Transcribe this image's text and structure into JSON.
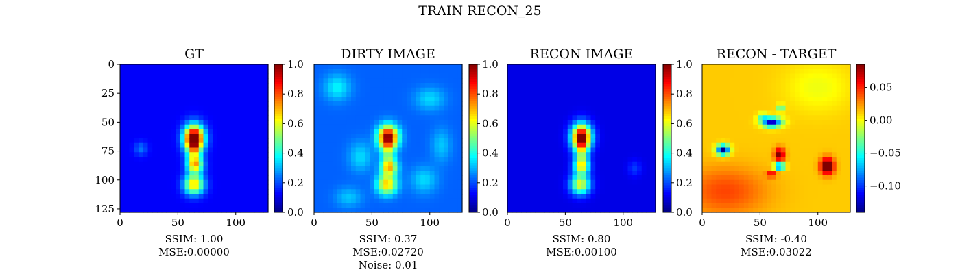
{
  "figure": {
    "title": "TRAIN RECON_25"
  },
  "chart_data": [
    {
      "type": "heatmap",
      "title": "GT",
      "xlabel_lines": [
        "SSIM: 1.00",
        "MSE:0.00000"
      ],
      "xticks": [
        0,
        50,
        100
      ],
      "yticks": [
        0,
        25,
        50,
        75,
        100,
        125
      ],
      "xlim": [
        0,
        128
      ],
      "ylim": [
        128,
        0
      ],
      "colormap": "jet",
      "colorbar": {
        "ticks": [
          0.0,
          0.2,
          0.4,
          0.6,
          0.8,
          1.0
        ],
        "tick_labels": [
          "0.0",
          "0.2",
          "0.4",
          "0.6",
          "0.8",
          "1.0"
        ],
        "range": [
          0.0,
          1.0
        ]
      },
      "background": 0.12,
      "blobs": [
        {
          "x": 64,
          "y": 64,
          "sx": 6,
          "sy": 8,
          "v": 0.95
        },
        {
          "x": 65,
          "y": 87,
          "sx": 5,
          "sy": 5,
          "v": 0.45
        },
        {
          "x": 64,
          "y": 104,
          "sx": 6,
          "sy": 6,
          "v": 0.55
        },
        {
          "x": 64,
          "y": 77,
          "sx": 4,
          "sy": 10,
          "v": 0.25
        },
        {
          "x": 18,
          "y": 73,
          "sx": 4,
          "sy": 4,
          "v": 0.12
        }
      ]
    },
    {
      "type": "heatmap",
      "title": "DIRTY IMAGE",
      "xlabel_lines": [
        "SSIM: 0.37",
        "MSE:0.02720",
        "Noise: 0.01"
      ],
      "xticks": [
        0,
        50,
        100
      ],
      "xlim": [
        0,
        128
      ],
      "ylim": [
        128,
        0
      ],
      "colormap": "jet",
      "colorbar": {
        "ticks": [
          0.0,
          0.2,
          0.4,
          0.6,
          0.8,
          1.0
        ],
        "tick_labels": [
          "0.0",
          "0.2",
          "0.4",
          "0.6",
          "0.8",
          "1.0"
        ],
        "range": [
          0.0,
          1.0
        ]
      },
      "background": 0.22,
      "blobs": [
        {
          "x": 64,
          "y": 63,
          "sx": 6,
          "sy": 7,
          "v": 0.75
        },
        {
          "x": 65,
          "y": 89,
          "sx": 5,
          "sy": 5,
          "v": 0.4
        },
        {
          "x": 63,
          "y": 104,
          "sx": 6,
          "sy": 6,
          "v": 0.45
        },
        {
          "x": 64,
          "y": 77,
          "sx": 4,
          "sy": 10,
          "v": 0.2
        },
        {
          "x": 20,
          "y": 20,
          "sx": 8,
          "sy": 8,
          "v": 0.15
        },
        {
          "x": 100,
          "y": 30,
          "sx": 9,
          "sy": 7,
          "v": 0.12
        },
        {
          "x": 40,
          "y": 80,
          "sx": 7,
          "sy": 9,
          "v": 0.12
        },
        {
          "x": 95,
          "y": 100,
          "sx": 8,
          "sy": 8,
          "v": 0.12
        },
        {
          "x": 110,
          "y": 70,
          "sx": 6,
          "sy": 10,
          "v": 0.1
        },
        {
          "x": 30,
          "y": 115,
          "sx": 8,
          "sy": 6,
          "v": 0.1
        }
      ]
    },
    {
      "type": "heatmap",
      "title": "RECON IMAGE",
      "xlabel_lines": [
        "SSIM: 0.80",
        "MSE:0.00100"
      ],
      "xticks": [
        0,
        50,
        100
      ],
      "xlim": [
        0,
        128
      ],
      "ylim": [
        128,
        0
      ],
      "colormap": "jet",
      "colorbar": {
        "ticks": [
          0.0,
          0.2,
          0.4,
          0.6,
          0.8,
          1.0
        ],
        "tick_labels": [
          "0.0",
          "0.2",
          "0.4",
          "0.6",
          "0.8",
          "1.0"
        ],
        "range": [
          0.0,
          1.0
        ]
      },
      "background": 0.1,
      "blobs": [
        {
          "x": 64,
          "y": 63,
          "sx": 6,
          "sy": 8,
          "v": 0.9
        },
        {
          "x": 64,
          "y": 88,
          "sx": 5,
          "sy": 5,
          "v": 0.42
        },
        {
          "x": 63,
          "y": 104,
          "sx": 6,
          "sy": 6,
          "v": 0.5
        },
        {
          "x": 64,
          "y": 77,
          "sx": 4,
          "sy": 10,
          "v": 0.25
        },
        {
          "x": 110,
          "y": 90,
          "sx": 4,
          "sy": 5,
          "v": 0.08
        }
      ]
    },
    {
      "type": "heatmap",
      "title": "RECON - TARGET",
      "xlabel_lines": [
        "SSIM: -0.40",
        "MSE:0.03022"
      ],
      "xticks": [
        0,
        50,
        100
      ],
      "xlim": [
        0,
        128
      ],
      "ylim": [
        128,
        0
      ],
      "colormap": "jet",
      "colorbar": {
        "ticks": [
          0.05,
          0.0,
          -0.05,
          -0.1
        ],
        "tick_labels": [
          "0.05",
          "0.00",
          "−0.05",
          "−0.10"
        ],
        "range": [
          -0.14,
          0.085
        ]
      },
      "background": 0.012,
      "blobs": [
        {
          "x": 18,
          "y": 74,
          "sx": 4,
          "sy": 3,
          "v": -0.15
        },
        {
          "x": 60,
          "y": 50,
          "sx": 6,
          "sy": 3,
          "v": -0.14
        },
        {
          "x": 52,
          "y": 45,
          "sx": 3,
          "sy": 2,
          "v": -0.05
        },
        {
          "x": 68,
          "y": 38,
          "sx": 2,
          "sy": 2,
          "v": -0.06
        },
        {
          "x": 67,
          "y": 78,
          "sx": 3,
          "sy": 4,
          "v": 0.075
        },
        {
          "x": 67,
          "y": 88,
          "sx": 3,
          "sy": 2,
          "v": -0.14
        },
        {
          "x": 60,
          "y": 95,
          "sx": 3,
          "sy": 2,
          "v": 0.05
        },
        {
          "x": 108,
          "y": 88,
          "sx": 4,
          "sy": 5,
          "v": 0.1
        },
        {
          "x": 20,
          "y": 110,
          "sx": 25,
          "sy": 15,
          "v": 0.03
        },
        {
          "x": 100,
          "y": 20,
          "sx": 20,
          "sy": 15,
          "v": -0.015
        }
      ]
    }
  ]
}
